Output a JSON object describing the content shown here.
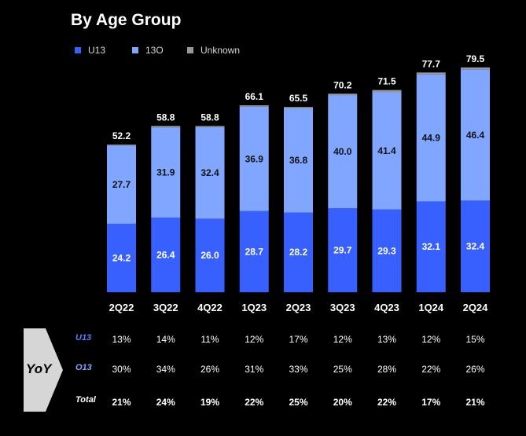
{
  "colors": {
    "u13": "#3860ff",
    "o13": "#80a6ff",
    "unknown": "#999999",
    "background": "#000000",
    "total_label": "#ffffff",
    "segment_label": "#111111",
    "u13_label": "#ffffff"
  },
  "chart_data": {
    "type": "bar",
    "stacked": true,
    "title": "By Age Group",
    "categories": [
      "2Q22",
      "3Q22",
      "4Q22",
      "1Q23",
      "2Q23",
      "3Q23",
      "4Q23",
      "1Q24",
      "2Q24"
    ],
    "series": [
      {
        "name": "U13",
        "values": [
          24.2,
          26.4,
          26.0,
          28.7,
          28.2,
          29.7,
          29.3,
          32.1,
          32.4
        ]
      },
      {
        "name": "13O",
        "values": [
          27.7,
          31.9,
          32.4,
          36.9,
          36.8,
          40.0,
          41.4,
          44.9,
          46.4
        ]
      },
      {
        "name": "Unknown",
        "values": [
          0.3,
          0.5,
          0.4,
          0.5,
          0.5,
          0.5,
          0.8,
          0.7,
          0.7
        ]
      }
    ],
    "totals": [
      52.2,
      58.8,
      58.8,
      66.1,
      65.5,
      70.2,
      71.5,
      77.7,
      79.5
    ],
    "legend_position": "top-left",
    "grid": false
  },
  "legend": {
    "u13": "U13",
    "o13": "13O",
    "unknown": "Unknown"
  },
  "yoy": {
    "label": "YoY",
    "rows": [
      {
        "label": "U13",
        "values": [
          "13%",
          "14%",
          "11%",
          "12%",
          "17%",
          "12%",
          "13%",
          "12%",
          "15%"
        ]
      },
      {
        "label": "O13",
        "values": [
          "30%",
          "34%",
          "26%",
          "31%",
          "33%",
          "25%",
          "28%",
          "22%",
          "26%"
        ]
      },
      {
        "label": "Total",
        "values": [
          "21%",
          "24%",
          "19%",
          "22%",
          "25%",
          "20%",
          "22%",
          "17%",
          "21%"
        ]
      }
    ]
  }
}
